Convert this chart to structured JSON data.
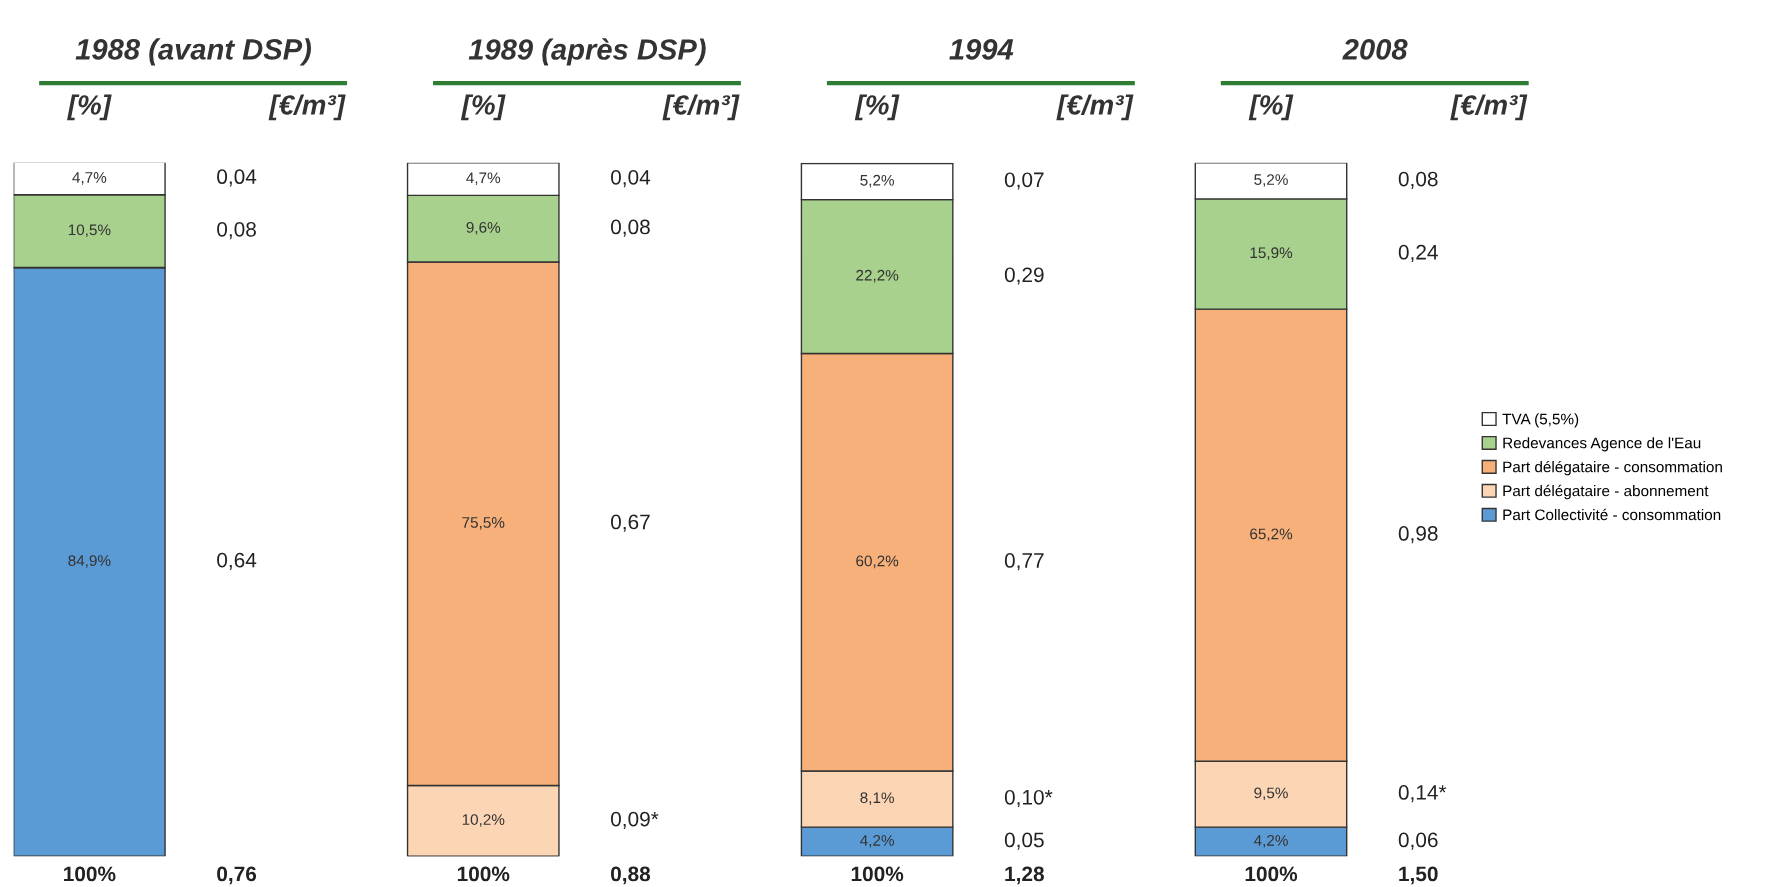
{
  "chart_data": {
    "type": "bar",
    "ylabel": "[%]",
    "y2label": "[€/m³]",
    "categories": [
      "1988 (avant DSP)",
      "1989 (après DSP)",
      "1994",
      "2008"
    ],
    "stacked": true,
    "ylim": [
      0,
      100
    ],
    "totals": [
      "100%",
      "100%",
      "100%",
      "100%"
    ],
    "legend": "right",
    "series": [
      {
        "name": "Part Collectivité - consommation",
        "color": "#5b9bd5",
        "values": [
          84.9,
          null,
          4.2,
          4.2
        ],
        "value_labels": [
          "84,9%",
          null,
          "4,2%",
          "4,2%"
        ]
      },
      {
        "name": "Part délégataire - abonnement",
        "color": "#fcd5b4",
        "values": [
          null,
          10.2,
          8.1,
          9.5
        ],
        "value_labels": [
          null,
          "10,2%",
          "8,1%",
          "9,5%"
        ]
      },
      {
        "name": "Part délégataire - consommation",
        "color": "#f8b07a",
        "values": [
          null,
          75.5,
          60.2,
          65.2
        ],
        "value_labels": [
          null,
          "75,5%",
          "60,2%",
          "65,2%"
        ]
      },
      {
        "name": "Redevances Agence de l'Eau",
        "color": "#a9d18e",
        "values": [
          10.5,
          9.6,
          22.2,
          15.9
        ],
        "value_labels": [
          "10,5%",
          "9,6%",
          "22,2%",
          "15,9%"
        ]
      },
      {
        "name": "TVA (5,5%)",
        "color": "#ffffff",
        "values": [
          4.7,
          4.7,
          5.2,
          5.2
        ],
        "value_labels": [
          "4,7%",
          "4,7%",
          "5,2%",
          "5,2%"
        ]
      }
    ],
    "annotations": [
      "0,04",
      "0,08",
      "0,64",
      "0,04",
      "0,08",
      "0,67",
      "0,09*",
      "0,07",
      "0,29",
      "0,77",
      "0,10*",
      "0,05",
      "0,08",
      "0,24",
      "0,98",
      "0,14*",
      "0,06",
      "0,76",
      "0,88",
      "1,28",
      "1,50"
    ]
  }
}
